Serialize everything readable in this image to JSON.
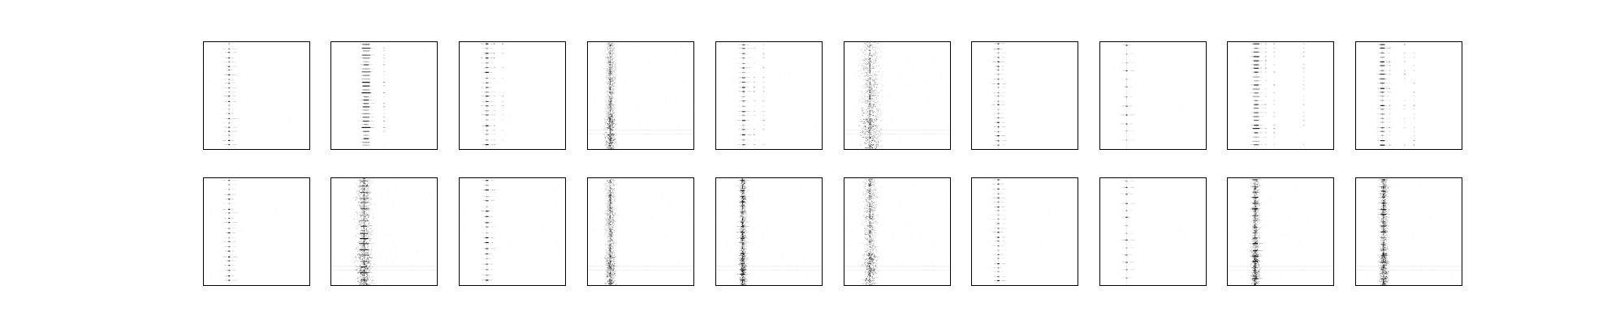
{
  "chart_data": {
    "type": "heatmap",
    "rows": 2,
    "columns": 10,
    "colormap": "gray_r",
    "colors": {
      "frame": "#000000",
      "background": "#ffffff",
      "ink": "#000000"
    },
    "axes_ticks": "none",
    "title": "",
    "xlabel": "",
    "ylabel": "",
    "panels": [
      {
        "row": 0,
        "col": 0,
        "style": "line",
        "center": 0.24,
        "halfwidth": 0.004,
        "lines": 24,
        "side": [],
        "noise": 0.05,
        "seed": 11
      },
      {
        "row": 0,
        "col": 1,
        "style": "line",
        "center": 0.33,
        "halfwidth": 0.04,
        "lines": 30,
        "side": [
          0.5
        ],
        "noise": 0.05,
        "seed": 12
      },
      {
        "row": 0,
        "col": 2,
        "style": "line",
        "center": 0.26,
        "halfwidth": 0.012,
        "lines": 22,
        "side": [
          0.33,
          0.41
        ],
        "noise": 0.05,
        "seed": 13
      },
      {
        "row": 0,
        "col": 3,
        "style": "smear",
        "center": 0.21,
        "halfwidth": 0.03,
        "lines": 0,
        "side": [],
        "noise": 0.25,
        "seed": 14
      },
      {
        "row": 0,
        "col": 4,
        "style": "line",
        "center": 0.26,
        "halfwidth": 0.012,
        "lines": 22,
        "side": [
          0.36,
          0.45
        ],
        "noise": 0.06,
        "seed": 15
      },
      {
        "row": 0,
        "col": 5,
        "style": "smear",
        "center": 0.24,
        "halfwidth": 0.06,
        "lines": 0,
        "side": [],
        "noise": 0.35,
        "seed": 16
      },
      {
        "row": 0,
        "col": 6,
        "style": "line",
        "center": 0.25,
        "halfwidth": 0.004,
        "lines": 24,
        "side": [],
        "noise": 0.03,
        "seed": 17
      },
      {
        "row": 0,
        "col": 7,
        "style": "line",
        "center": 0.25,
        "halfwidth": 0.004,
        "lines": 12,
        "side": [],
        "noise": 0.02,
        "seed": 18
      },
      {
        "row": 0,
        "col": 8,
        "style": "line",
        "center": 0.27,
        "halfwidth": 0.03,
        "lines": 26,
        "side": [
          0.36,
          0.44,
          0.72
        ],
        "noise": 0.06,
        "seed": 19
      },
      {
        "row": 0,
        "col": 9,
        "style": "line",
        "center": 0.25,
        "halfwidth": 0.02,
        "lines": 24,
        "side": [
          0.32,
          0.46,
          0.55
        ],
        "noise": 0.06,
        "seed": 20
      },
      {
        "row": 1,
        "col": 0,
        "style": "line",
        "center": 0.24,
        "halfwidth": 0.006,
        "lines": 22,
        "side": [],
        "noise": 0.1,
        "seed": 21
      },
      {
        "row": 1,
        "col": 1,
        "style": "smear",
        "center": 0.31,
        "halfwidth": 0.05,
        "lines": 18,
        "side": [],
        "noise": 0.35,
        "seed": 22
      },
      {
        "row": 1,
        "col": 2,
        "style": "line",
        "center": 0.26,
        "halfwidth": 0.012,
        "lines": 20,
        "side": [],
        "noise": 0.15,
        "seed": 23
      },
      {
        "row": 1,
        "col": 3,
        "style": "smear",
        "center": 0.21,
        "halfwidth": 0.03,
        "lines": 0,
        "side": [],
        "noise": 0.25,
        "seed": 24
      },
      {
        "row": 1,
        "col": 4,
        "style": "smear",
        "center": 0.25,
        "halfwidth": 0.02,
        "lines": 20,
        "side": [],
        "noise": 0.25,
        "seed": 25
      },
      {
        "row": 1,
        "col": 5,
        "style": "smear",
        "center": 0.24,
        "halfwidth": 0.04,
        "lines": 0,
        "side": [],
        "noise": 0.3,
        "seed": 26
      },
      {
        "row": 1,
        "col": 6,
        "style": "line",
        "center": 0.25,
        "halfwidth": 0.006,
        "lines": 24,
        "side": [],
        "noise": 0.1,
        "seed": 27
      },
      {
        "row": 1,
        "col": 7,
        "style": "line",
        "center": 0.25,
        "halfwidth": 0.006,
        "lines": 14,
        "side": [],
        "noise": 0.1,
        "seed": 28
      },
      {
        "row": 1,
        "col": 8,
        "style": "smear",
        "center": 0.26,
        "halfwidth": 0.025,
        "lines": 18,
        "side": [],
        "noise": 0.22,
        "seed": 29
      },
      {
        "row": 1,
        "col": 9,
        "style": "smear",
        "center": 0.26,
        "halfwidth": 0.025,
        "lines": 18,
        "side": [],
        "noise": 0.22,
        "seed": 30
      }
    ]
  }
}
